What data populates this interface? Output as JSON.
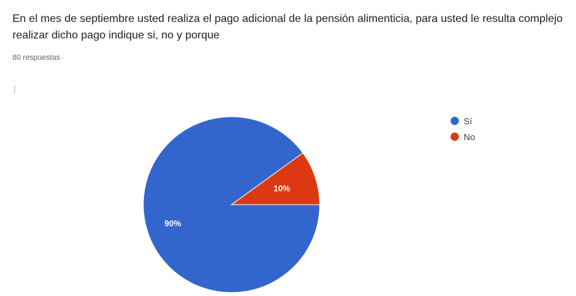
{
  "question": {
    "title": "En el mes de septiembre usted realiza el pago adicional de la pensión alimenticia, para usted le resulta complejo realizar dicho pago indique si, no  y porque",
    "response_count": "80 respuestas"
  },
  "chart_data": {
    "type": "pie",
    "categories": [
      "Sí",
      "No"
    ],
    "values": [
      90,
      10
    ],
    "value_labels": [
      "90%",
      "10%"
    ],
    "colors": [
      "#3366cc",
      "#dc3912"
    ],
    "legend_position": "right"
  }
}
